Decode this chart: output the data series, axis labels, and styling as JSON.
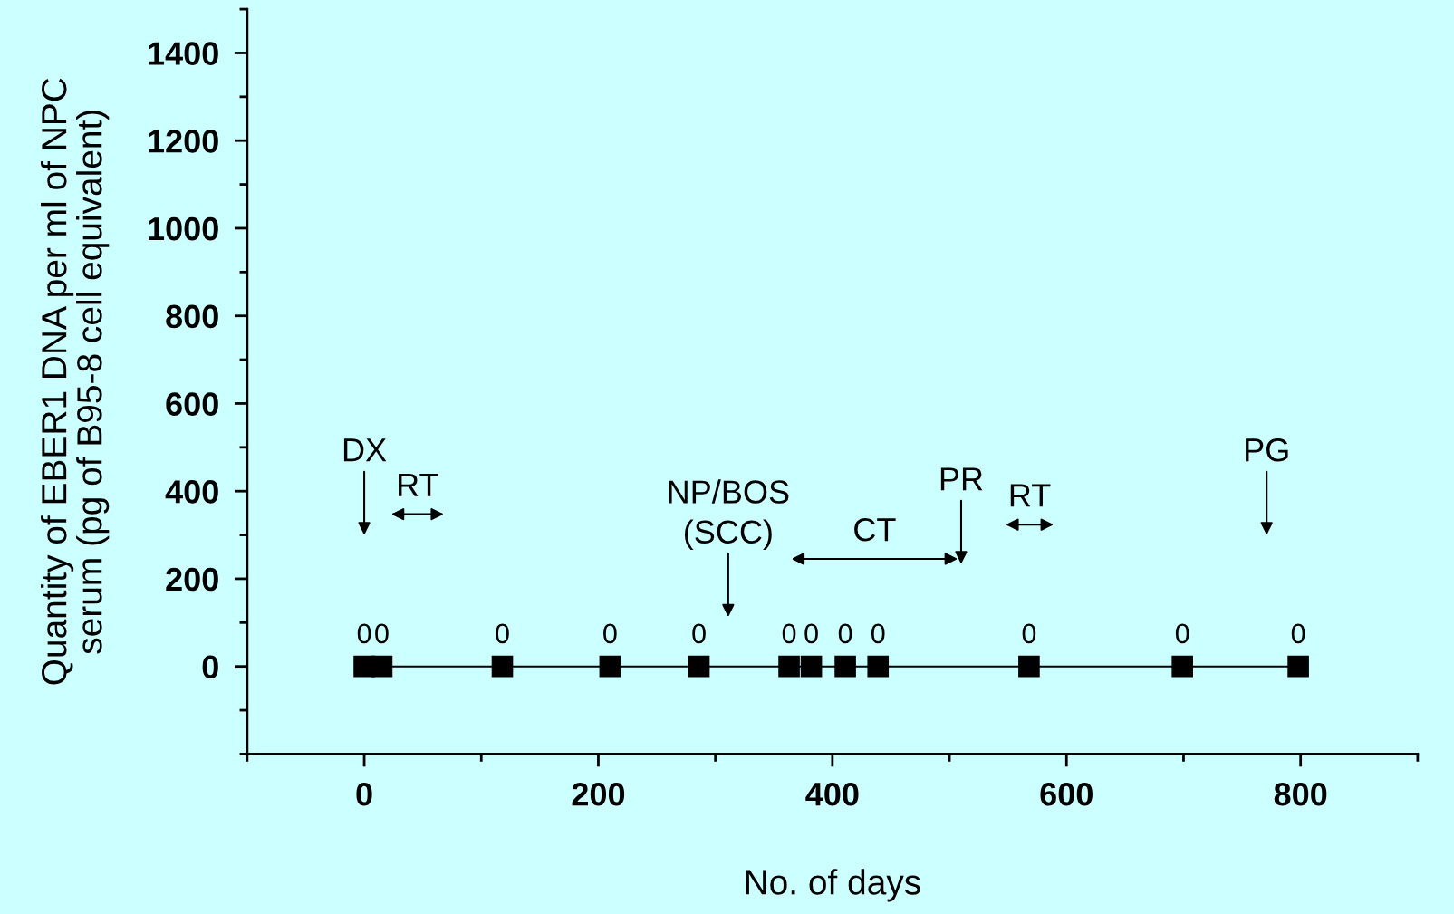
{
  "chart_data": {
    "type": "line",
    "xlabel": "No. of days",
    "ylabel": "Quantity of EBER1 DNA per ml of NPC\nserum (pg of B95-8 cell equivalent)",
    "x": [
      0,
      15,
      118,
      210,
      286,
      363,
      382,
      411,
      439,
      568,
      699,
      798
    ],
    "series": [
      {
        "color": "#000000",
        "values": [
          0,
          0,
          0,
          0,
          0,
          0,
          0,
          0,
          0,
          0,
          0,
          0
        ]
      }
    ],
    "marker": "square",
    "line_style": "solid",
    "data_labels": true,
    "grid": false,
    "xlim": [
      -100,
      900
    ],
    "xticks": [
      0,
      200,
      400,
      600,
      800
    ],
    "ylim": [
      -200,
      1500
    ],
    "yticks": [
      0,
      200,
      400,
      600,
      800,
      1000,
      1200,
      1400
    ],
    "annotations": [
      "DX",
      "RT",
      "NP/BOS\n(SCC)",
      "CT",
      "PR",
      "RT",
      "PG"
    ]
  }
}
